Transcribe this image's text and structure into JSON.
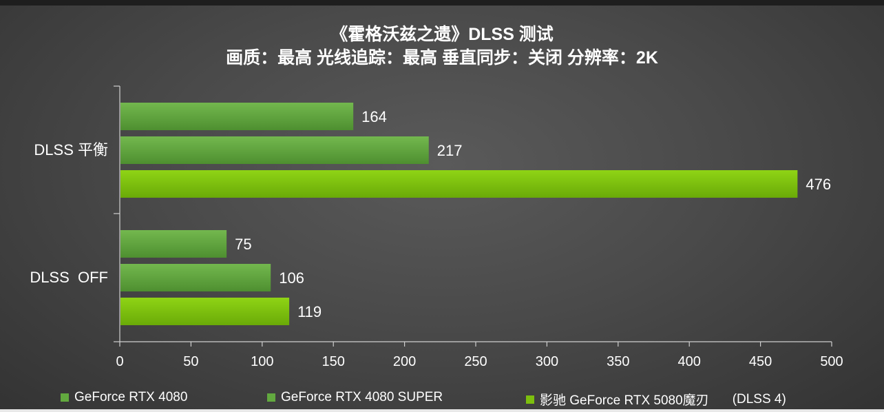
{
  "chart_data": {
    "type": "bar",
    "orientation": "horizontal",
    "title": "《霍格沃兹之遗》DLSS 测试",
    "subtitle": "画质：最高 光线追踪：最高 垂直同步：关闭 分辨率：2K",
    "categories": [
      "DLSS 平衡",
      "DLSS  OFF"
    ],
    "series": [
      {
        "name": "GeForce RTX 4080",
        "values": [
          164,
          75
        ],
        "color": "#62a93f"
      },
      {
        "name": "GeForce RTX 4080 SUPER",
        "values": [
          217,
          106
        ],
        "color": "#62a93f"
      },
      {
        "name": "影驰 GeForce RTX 5080魔刃",
        "name_suffix": "(DLSS 4)",
        "values": [
          476,
          119
        ],
        "color": "#7dbf0e"
      }
    ],
    "xlim": [
      0,
      500
    ],
    "xticks": [
      0,
      50,
      100,
      150,
      200,
      250,
      300,
      350,
      400,
      450,
      500
    ],
    "xlabel": "",
    "ylabel": "",
    "grid": false,
    "legend_position": "bottom"
  }
}
